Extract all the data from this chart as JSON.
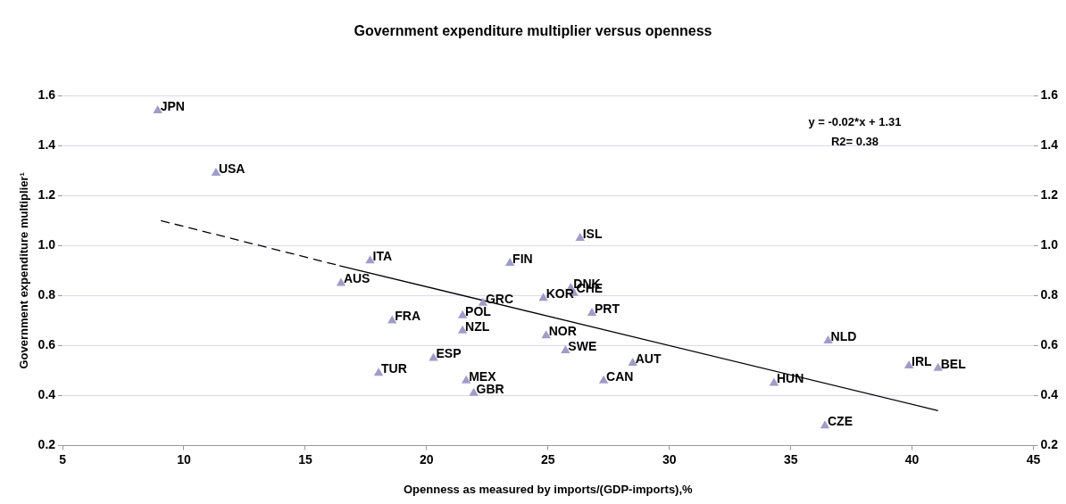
{
  "chart_data": {
    "type": "scatter",
    "title": "Government expenditure multiplier versus openness",
    "xlabel": "Openness as measured by imports/(GDP-imports),%",
    "ylabel": "Government expenditure multiplier¹",
    "xlim": [
      5,
      45
    ],
    "xticks": [
      5,
      10,
      15,
      20,
      25,
      30,
      35,
      40,
      45
    ],
    "ylim": [
      0.2,
      1.6
    ],
    "yticks": [
      0.2,
      0.4,
      0.6,
      0.8,
      {
        "value": 1.0,
        "label": "1.0"
      },
      1.2,
      1.4,
      1.6
    ],
    "y2lim": [
      0.2,
      1.6
    ],
    "y2ticks": [
      0.2,
      0.4,
      0.6,
      0.8,
      {
        "value": 1.0,
        "label": "1.0"
      },
      1.2,
      1.4,
      1.6
    ],
    "grid": "y",
    "legend": false,
    "series": [
      {
        "color": "#a09cc8",
        "marker": "triangle",
        "x": [
          8.92,
          11.32,
          17.67,
          16.47,
          18.58,
          18.02,
          26.32,
          23.43,
          25.94,
          26.06,
          24.81,
          22.32,
          21.48,
          26.81,
          21.48,
          24.92,
          25.72,
          20.28,
          28.49,
          21.63,
          27.29,
          21.94,
          36.54,
          39.87,
          41.07,
          34.31,
          36.41
        ],
        "values": [
          1.54,
          1.29,
          0.94,
          0.85,
          0.7,
          0.49,
          1.03,
          0.93,
          0.83,
          0.81,
          0.79,
          0.77,
          0.72,
          0.73,
          0.66,
          0.64,
          0.58,
          0.55,
          0.53,
          0.46,
          0.46,
          0.41,
          0.62,
          0.52,
          0.51,
          0.45,
          0.28
        ]
      },
      {
        "type": "line",
        "color": "#000000",
        "marker": "none",
        "line_style": "dashed",
        "x": [
          9.05,
          16.41
        ],
        "values": [
          1.1,
          0.92
        ]
      },
      {
        "type": "line",
        "color": "#000000",
        "marker": "none",
        "line_style": "solid",
        "x": [
          16.41,
          41.07
        ],
        "values": [
          0.92,
          0.34
        ]
      }
    ],
    "annotations": [
      "y = -0.02*x + 1.31",
      "R2= 0.38",
      {
        "text": "JPN",
        "x": 8.92,
        "y": 1.54
      },
      {
        "text": "USA",
        "x": 11.32,
        "y": 1.29
      },
      {
        "text": "ITA",
        "x": 17.67,
        "y": 0.94
      },
      {
        "text": "AUS",
        "x": 16.47,
        "y": 0.85
      },
      {
        "text": "FRA",
        "x": 18.58,
        "y": 0.7
      },
      {
        "text": "TUR",
        "x": 18.02,
        "y": 0.49
      },
      {
        "text": "ISL",
        "x": 26.32,
        "y": 1.03
      },
      {
        "text": "FIN",
        "x": 23.43,
        "y": 0.93
      },
      {
        "text": "DNK",
        "x": 25.94,
        "y": 0.83
      },
      {
        "text": "CHE",
        "x": 26.06,
        "y": 0.81
      },
      {
        "text": "KOR",
        "x": 24.81,
        "y": 0.79
      },
      {
        "text": "GRC",
        "x": 22.32,
        "y": 0.77
      },
      {
        "text": "POL",
        "x": 21.48,
        "y": 0.72
      },
      {
        "text": "PRT",
        "x": 26.81,
        "y": 0.73
      },
      {
        "text": "NZL",
        "x": 21.48,
        "y": 0.66
      },
      {
        "text": "NOR",
        "x": 24.92,
        "y": 0.64
      },
      {
        "text": "SWE",
        "x": 25.72,
        "y": 0.58
      },
      {
        "text": "ESP",
        "x": 20.28,
        "y": 0.55
      },
      {
        "text": "AUT",
        "x": 28.49,
        "y": 0.53
      },
      {
        "text": "MEX",
        "x": 21.63,
        "y": 0.46
      },
      {
        "text": "CAN",
        "x": 27.29,
        "y": 0.46
      },
      {
        "text": "GBR",
        "x": 21.94,
        "y": 0.41
      },
      {
        "text": "NLD",
        "x": 36.54,
        "y": 0.62
      },
      {
        "text": "IRL",
        "x": 39.87,
        "y": 0.52
      },
      {
        "text": "BEL",
        "x": 41.07,
        "y": 0.51
      },
      {
        "text": "HUN",
        "x": 34.31,
        "y": 0.45
      },
      {
        "text": "CZE",
        "x": 36.41,
        "y": 0.28
      }
    ]
  }
}
